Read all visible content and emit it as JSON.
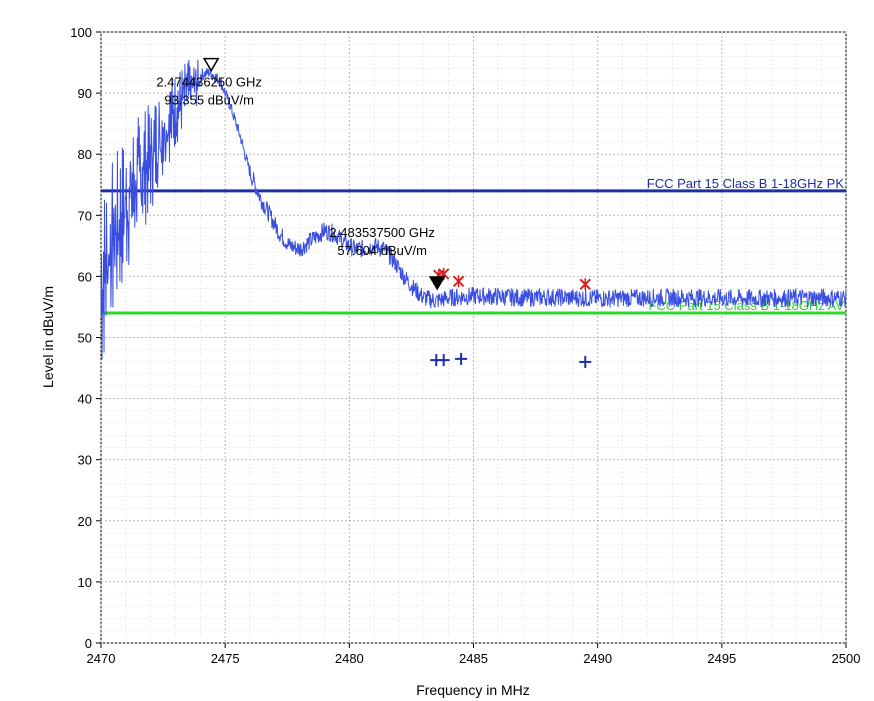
{
  "chart_data": {
    "type": "line",
    "xlabel": "Frequency in MHz",
    "ylabel": "Level in dBuV/m",
    "xlim": [
      2470,
      2500
    ],
    "ylim": [
      0,
      100
    ],
    "x_ticks": [
      2470,
      2475,
      2480,
      2485,
      2490,
      2495,
      2500
    ],
    "y_ticks": [
      0,
      10,
      20,
      30,
      40,
      50,
      60,
      70,
      80,
      90,
      100
    ],
    "grid": true,
    "colors": {
      "trace": "#3a4fe0",
      "pk_limit": "#1d2fa8",
      "av_limit": "#2bd92b",
      "peak_marker": "#d42020",
      "avg_marker": "#1d2fa8"
    },
    "series": [
      {
        "style": "trace",
        "points": [
          [
            2470.0,
            62
          ],
          [
            2470.3,
            68
          ],
          [
            2470.6,
            71
          ],
          [
            2471.0,
            75
          ],
          [
            2471.5,
            79
          ],
          [
            2472.0,
            82
          ],
          [
            2472.5,
            86
          ],
          [
            2473.0,
            89
          ],
          [
            2473.5,
            92
          ],
          [
            2474.0,
            93
          ],
          [
            2474.4,
            93.4
          ],
          [
            2474.8,
            92
          ],
          [
            2475.2,
            88
          ],
          [
            2475.6,
            83
          ],
          [
            2476.0,
            77
          ],
          [
            2476.4,
            73
          ],
          [
            2476.8,
            70
          ],
          [
            2477.2,
            67
          ],
          [
            2477.6,
            65
          ],
          [
            2478.0,
            64.5
          ],
          [
            2478.5,
            66
          ],
          [
            2479.0,
            67.5
          ],
          [
            2479.4,
            67
          ],
          [
            2479.8,
            65.5
          ],
          [
            2480.2,
            64.5
          ],
          [
            2480.6,
            64.5
          ],
          [
            2481.0,
            65
          ],
          [
            2481.4,
            64.5
          ],
          [
            2481.8,
            62.5
          ],
          [
            2482.2,
            60
          ],
          [
            2482.6,
            58
          ],
          [
            2483.0,
            56.5
          ],
          [
            2483.5,
            56
          ],
          [
            2484.0,
            56.5
          ],
          [
            2485.0,
            56.8
          ],
          [
            2486.0,
            56.7
          ],
          [
            2487.0,
            56.5
          ],
          [
            2488.0,
            56.6
          ],
          [
            2489.0,
            56.5
          ],
          [
            2490.0,
            56.4
          ],
          [
            2492.0,
            56.5
          ],
          [
            2494.0,
            56.5
          ],
          [
            2496.0,
            56.4
          ],
          [
            2498.0,
            56.5
          ],
          [
            2500.0,
            56.5
          ]
        ]
      }
    ],
    "limit_lines": [
      {
        "label": "FCC Part 15 Class B 1-18GHz PK",
        "y": 74,
        "style": "pk_limit"
      },
      {
        "label": "FCC Part 15 Class B 1-18GHz AV",
        "y": 54,
        "style": "av_limit"
      }
    ],
    "peak_points": [
      {
        "x": 2483.6,
        "y": 60.2
      },
      {
        "x": 2483.8,
        "y": 60.4
      },
      {
        "x": 2484.4,
        "y": 59.2
      },
      {
        "x": 2489.5,
        "y": 58.7
      }
    ],
    "avg_points": [
      {
        "x": 2483.5,
        "y": 46.3
      },
      {
        "x": 2483.8,
        "y": 46.3
      },
      {
        "x": 2484.5,
        "y": 46.5
      },
      {
        "x": 2489.5,
        "y": 46.0
      }
    ],
    "markers": [
      {
        "x": 2474.436,
        "y": 93.355,
        "freq_label": "2.474436250 GHz",
        "level_label": "93.355 dBuV/m",
        "filled": false
      },
      {
        "x": 2483.5375,
        "y": 57.604,
        "freq_label": "2.483537500 GHz",
        "level_label": "57.604 dBuV/m",
        "filled": true
      }
    ]
  }
}
